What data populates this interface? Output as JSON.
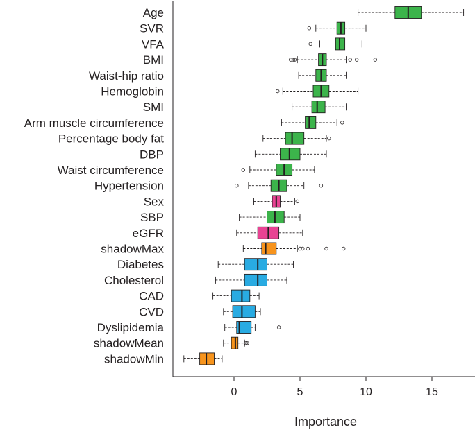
{
  "chart_data": {
    "type": "boxplot",
    "title": "",
    "xlabel": "Importance",
    "ylabel": "",
    "xlim": [
      -4,
      19
    ],
    "x_ticks": [
      0,
      5,
      10,
      15
    ],
    "x_tick_labels": [
      "0",
      "5",
      "10",
      "15"
    ],
    "colors": {
      "confirmed": "#3cb44b",
      "tentative": "#e84393",
      "rejected": "#29abe2",
      "shadow": "#f7941d"
    },
    "series": [
      {
        "name": "Age",
        "group": "confirmed",
        "whisker_low": 9.4,
        "q1": 12.2,
        "median": 13.2,
        "q3": 14.2,
        "whisker_high": 17.4,
        "outliers": []
      },
      {
        "name": "SVR",
        "group": "confirmed",
        "whisker_low": 6.2,
        "q1": 7.8,
        "median": 8.1,
        "q3": 8.4,
        "whisker_high": 10.0,
        "outliers": [
          5.7
        ]
      },
      {
        "name": "VFA",
        "group": "confirmed",
        "whisker_low": 6.5,
        "q1": 7.7,
        "median": 8.0,
        "q3": 8.4,
        "whisker_high": 9.7,
        "outliers": [
          5.8
        ]
      },
      {
        "name": "BMI",
        "group": "confirmed",
        "whisker_low": 4.8,
        "q1": 6.4,
        "median": 6.7,
        "q3": 7.0,
        "whisker_high": 8.5,
        "outliers": [
          4.3,
          4.5,
          4.6,
          8.8,
          9.3,
          10.7
        ]
      },
      {
        "name": "Waist-hip ratio",
        "group": "confirmed",
        "whisker_low": 4.9,
        "q1": 6.2,
        "median": 6.6,
        "q3": 7.0,
        "whisker_high": 8.5,
        "outliers": []
      },
      {
        "name": "Hemoglobin",
        "group": "confirmed",
        "whisker_low": 3.7,
        "q1": 6.0,
        "median": 6.6,
        "q3": 7.2,
        "whisker_high": 9.4,
        "outliers": [
          3.3
        ]
      },
      {
        "name": "SMI",
        "group": "confirmed",
        "whisker_low": 4.4,
        "q1": 5.9,
        "median": 6.3,
        "q3": 6.9,
        "whisker_high": 8.5,
        "outliers": []
      },
      {
        "name": "Arm muscle circumference",
        "group": "confirmed",
        "whisker_low": 3.6,
        "q1": 5.4,
        "median": 5.7,
        "q3": 6.2,
        "whisker_high": 7.8,
        "outliers": [
          8.2
        ]
      },
      {
        "name": "Percentage body fat",
        "group": "confirmed",
        "whisker_low": 2.2,
        "q1": 3.9,
        "median": 4.4,
        "q3": 5.3,
        "whisker_high": 7.0,
        "outliers": [
          7.2
        ]
      },
      {
        "name": "DBP",
        "group": "confirmed",
        "whisker_low": 1.6,
        "q1": 3.5,
        "median": 4.2,
        "q3": 5.0,
        "whisker_high": 7.0,
        "outliers": []
      },
      {
        "name": "Waist circumference",
        "group": "confirmed",
        "whisker_low": 1.2,
        "q1": 3.2,
        "median": 3.8,
        "q3": 4.4,
        "whisker_high": 6.1,
        "outliers": [
          0.7
        ]
      },
      {
        "name": "Hypertension",
        "group": "confirmed",
        "whisker_low": 1.1,
        "q1": 2.8,
        "median": 3.4,
        "q3": 4.0,
        "whisker_high": 5.3,
        "outliers": [
          0.2,
          6.6
        ]
      },
      {
        "name": "Sex",
        "group": "tentative",
        "whisker_low": 1.5,
        "q1": 2.9,
        "median": 3.2,
        "q3": 3.5,
        "whisker_high": 4.6,
        "outliers": [
          4.8
        ]
      },
      {
        "name": "SBP",
        "group": "confirmed",
        "whisker_low": 0.4,
        "q1": 2.5,
        "median": 3.1,
        "q3": 3.8,
        "whisker_high": 5.0,
        "outliers": []
      },
      {
        "name": "eGFR",
        "group": "tentative",
        "whisker_low": 0.2,
        "q1": 1.8,
        "median": 2.6,
        "q3": 3.4,
        "whisker_high": 5.2,
        "outliers": []
      },
      {
        "name": "shadowMax",
        "group": "shadow",
        "whisker_low": 0.7,
        "q1": 2.1,
        "median": 2.4,
        "q3": 3.2,
        "whisker_high": 4.8,
        "outliers": [
          5.0,
          5.2,
          5.6,
          7.0,
          8.3
        ]
      },
      {
        "name": "Diabetes",
        "group": "rejected",
        "whisker_low": -1.2,
        "q1": 0.8,
        "median": 1.8,
        "q3": 2.5,
        "whisker_high": 4.5,
        "outliers": []
      },
      {
        "name": "Cholesterol",
        "group": "rejected",
        "whisker_low": -1.4,
        "q1": 0.8,
        "median": 1.8,
        "q3": 2.5,
        "whisker_high": 4.0,
        "outliers": []
      },
      {
        "name": "CAD",
        "group": "rejected",
        "whisker_low": -1.6,
        "q1": -0.2,
        "median": 0.6,
        "q3": 1.2,
        "whisker_high": 1.9,
        "outliers": []
      },
      {
        "name": "CVD",
        "group": "rejected",
        "whisker_low": -0.8,
        "q1": -0.1,
        "median": 0.6,
        "q3": 1.6,
        "whisker_high": 2.0,
        "outliers": []
      },
      {
        "name": "Dyslipidemia",
        "group": "rejected",
        "whisker_low": -0.7,
        "q1": 0.2,
        "median": 0.4,
        "q3": 1.3,
        "whisker_high": 1.6,
        "outliers": [
          3.4
        ]
      },
      {
        "name": "shadowMean",
        "group": "shadow",
        "whisker_low": -0.8,
        "q1": -0.2,
        "median": 0.1,
        "q3": 0.3,
        "whisker_high": 0.8,
        "outliers": [
          0.9,
          1.0
        ]
      },
      {
        "name": "shadowMin",
        "group": "shadow",
        "whisker_low": -3.8,
        "q1": -2.6,
        "median": -2.1,
        "q3": -1.5,
        "whisker_high": -0.9,
        "outliers": []
      }
    ]
  }
}
